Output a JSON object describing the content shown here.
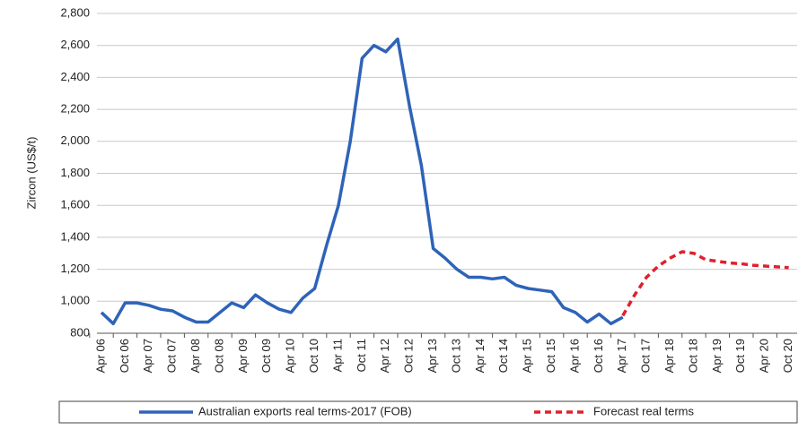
{
  "chart_data": {
    "type": "line",
    "y_label": "Zircon (US$/t)",
    "categories": [
      "Apr 06",
      null,
      "Oct 06",
      null,
      "Apr 07",
      null,
      "Oct 07",
      null,
      "Apr 08",
      null,
      "Oct 08",
      null,
      "Apr 09",
      null,
      "Oct 09",
      null,
      "Apr 10",
      null,
      "Oct 10",
      null,
      "Apr 11",
      null,
      "Oct 11",
      null,
      "Apr 12",
      null,
      "Oct 12",
      null,
      "Apr 13",
      null,
      "Oct 13",
      null,
      "Apr 14",
      null,
      "Oct 14",
      null,
      "Apr 15",
      null,
      "Oct 15",
      null,
      "Apr 16",
      null,
      "Oct 16",
      null,
      "Apr 17",
      null,
      "Oct 17",
      null,
      "Apr 18",
      null,
      "Oct 18",
      null,
      "Apr 19",
      null,
      "Oct 19",
      null,
      "Apr 20",
      null,
      "Oct 20"
    ],
    "series": [
      {
        "name": "Australian exports real terms-2017 (FOB)",
        "color": "#2e63b8",
        "style": "solid",
        "values": [
          930,
          860,
          990,
          990,
          975,
          950,
          940,
          900,
          870,
          870,
          930,
          990,
          960,
          1040,
          990,
          950,
          930,
          1020,
          1080,
          1350,
          1600,
          2000,
          2520,
          2600,
          2560,
          2640,
          2220,
          1850,
          1330,
          1270,
          1200,
          1150,
          1150,
          1140,
          1150,
          1100,
          1080,
          1070,
          1060,
          960,
          930,
          870,
          920,
          860,
          900,
          null,
          null,
          null,
          null,
          null,
          null,
          null,
          null,
          null,
          null,
          null,
          null,
          null,
          null
        ]
      },
      {
        "name": "Forecast real terms",
        "color": "#e0202e",
        "style": "dashed",
        "values": [
          null,
          null,
          null,
          null,
          null,
          null,
          null,
          null,
          null,
          null,
          null,
          null,
          null,
          null,
          null,
          null,
          null,
          null,
          null,
          null,
          null,
          null,
          null,
          null,
          null,
          null,
          null,
          null,
          null,
          null,
          null,
          null,
          null,
          null,
          null,
          null,
          null,
          null,
          null,
          null,
          null,
          null,
          null,
          null,
          910,
          1040,
          1150,
          1220,
          1270,
          1310,
          1300,
          1260,
          1250,
          1240,
          1235,
          1225,
          1220,
          1215,
          1210
        ]
      }
    ],
    "ylim": [
      800,
      2800
    ],
    "yticks": [
      800,
      {
        "value": 1000,
        "label": "1,000"
      },
      {
        "value": 1200,
        "label": "1,200"
      },
      {
        "value": 1400,
        "label": "1,400"
      },
      {
        "value": 1600,
        "label": "1,600"
      },
      {
        "value": 1800,
        "label": "1,800"
      },
      {
        "value": 2000,
        "label": "2,000"
      },
      {
        "value": 2200,
        "label": "2,200"
      },
      {
        "value": 2400,
        "label": "2,400"
      },
      {
        "value": 2600,
        "label": "2,600"
      },
      {
        "value": 2800,
        "label": "2,800"
      }
    ],
    "grid": true,
    "legend": "bottom"
  }
}
